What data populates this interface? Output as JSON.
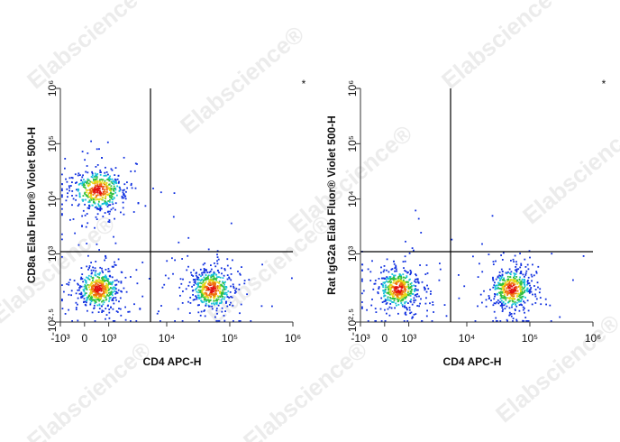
{
  "watermark": "Elabscience®",
  "chart_data": [
    {
      "type": "scatter",
      "xscale": "asinh",
      "yscale": "asinh",
      "xlabel": "CD4 APC-H",
      "ylabel": "CD8a Elab Fluor® Violet 500-H",
      "corner_mark": "*",
      "xlim": [
        -1000,
        1000000
      ],
      "ylim": [
        -316,
        1000000
      ],
      "xticks": [
        {
          "value": -1000,
          "label": "-10³"
        },
        0,
        {
          "value": 1000,
          "label": "10³"
        },
        {
          "value": 10000,
          "label": "10⁴"
        },
        {
          "value": 100000,
          "label": "10⁵"
        },
        {
          "value": 1000000,
          "label": "10⁶"
        }
      ],
      "yticks": [
        {
          "value": -316,
          "label": "-10²·⁵"
        },
        {
          "value": 1000,
          "label": "10³"
        },
        {
          "value": 10000,
          "label": "10⁴"
        },
        {
          "value": 100000,
          "label": "10⁵"
        },
        {
          "value": 1000000,
          "label": "10⁶"
        }
      ],
      "gate": {
        "x": 5500,
        "y": 1100
      },
      "populations": [
        {
          "x": 500,
          "y": 15000
        },
        {
          "x": 500,
          "y": 150
        },
        {
          "x": 50000,
          "y": 150
        }
      ]
    },
    {
      "type": "scatter",
      "xscale": "asinh",
      "yscale": "asinh",
      "xlabel": "CD4 APC-H",
      "ylabel": "Rat IgG2a Elab Fluor® Violet 500-H",
      "corner_mark": "*",
      "xlim": [
        -1000,
        1000000
      ],
      "ylim": [
        -316,
        1000000
      ],
      "xticks": [
        {
          "value": -1000,
          "label": "-10³"
        },
        0,
        {
          "value": 1000,
          "label": "10³"
        },
        {
          "value": 10000,
          "label": "10⁴"
        },
        {
          "value": 100000,
          "label": "10⁵"
        },
        {
          "value": 1000000,
          "label": "10⁶"
        }
      ],
      "yticks": [
        {
          "value": -316,
          "label": "-10²·⁵"
        },
        {
          "value": 1000,
          "label": "10³"
        },
        {
          "value": 10000,
          "label": "10⁴"
        },
        {
          "value": 100000,
          "label": "10⁵"
        },
        {
          "value": 1000000,
          "label": "10⁶"
        }
      ],
      "gate": {
        "x": 5500,
        "y": 1100
      },
      "populations": [
        {
          "x": 500,
          "y": 150
        },
        {
          "x": 50000,
          "y": 150
        }
      ]
    }
  ]
}
